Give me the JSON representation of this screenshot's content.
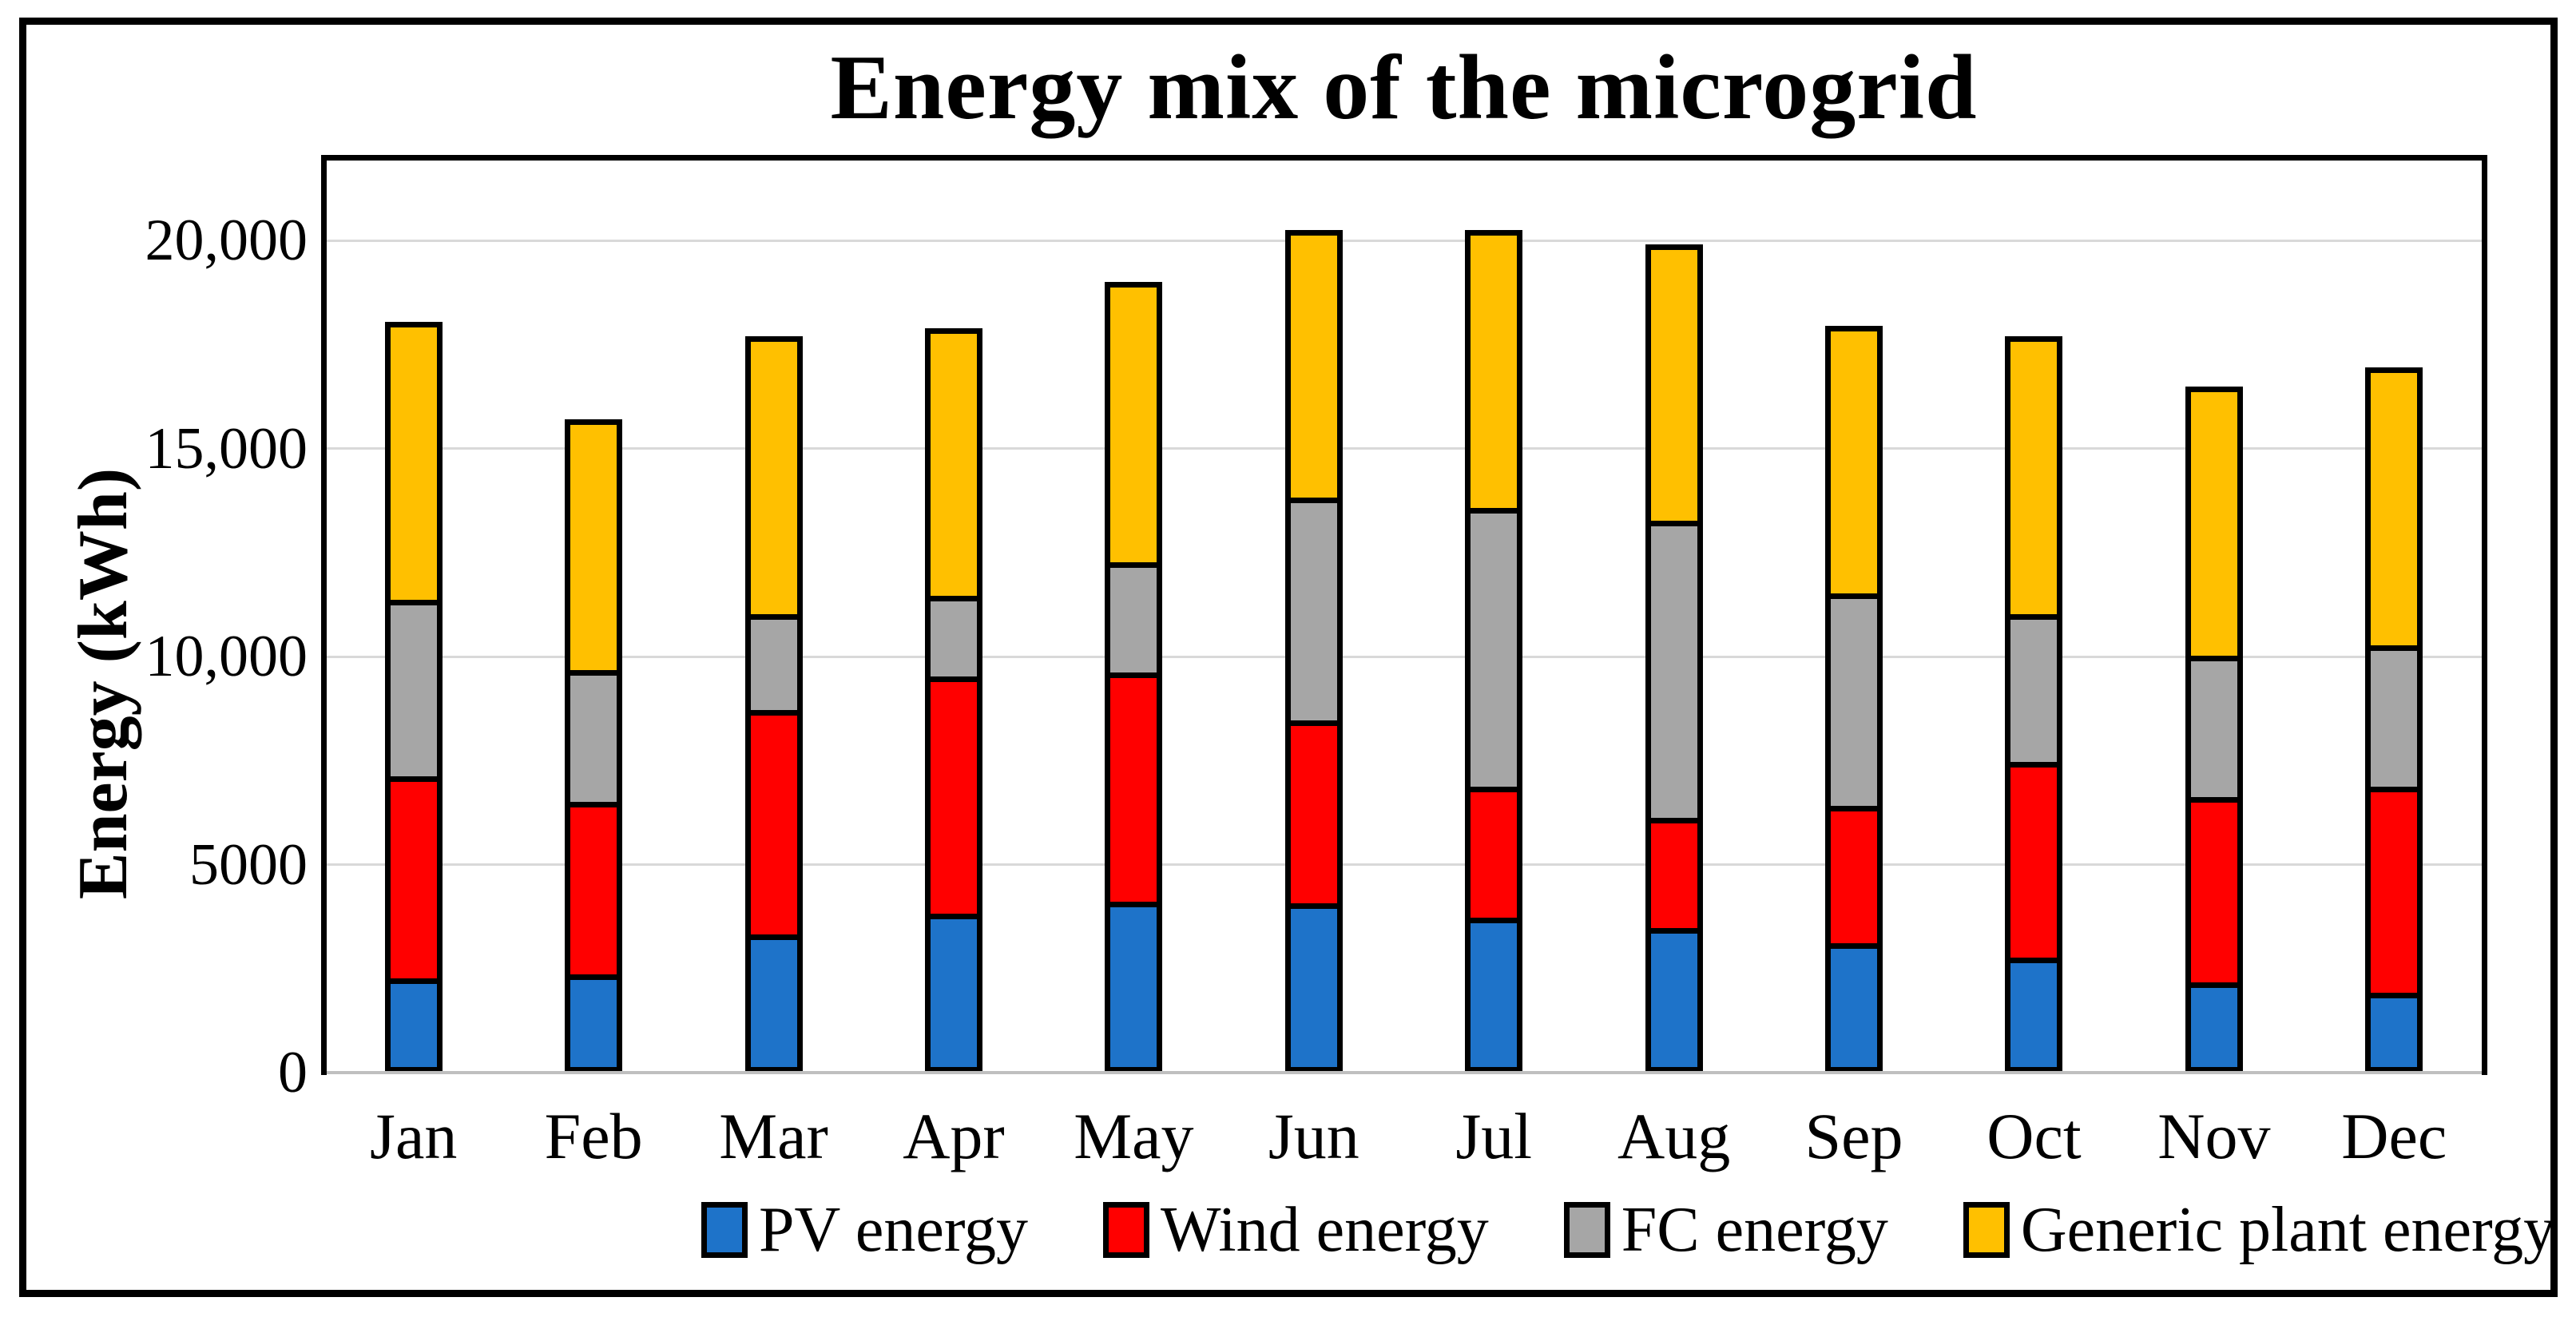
{
  "figure": {
    "title": "Energy mix of the microgrid",
    "y_axis_title": "Energy (kWh)"
  },
  "chart_data": {
    "type": "bar",
    "stacked": true,
    "title": "Energy mix of the microgrid",
    "xlabel": "",
    "ylabel": "Energy (kWh)",
    "ylim": [
      0,
      22000
    ],
    "grid": "horizontal",
    "gridline_values": [
      5000,
      10000,
      15000,
      20000
    ],
    "ytick_values": [
      0,
      5000,
      10000,
      15000,
      20000
    ],
    "ytick_labels": [
      "0",
      "5000",
      "10,000",
      "15,000",
      "20,000"
    ],
    "legend_position": "bottom",
    "categories": [
      "Jan",
      "Feb",
      "Mar",
      "Apr",
      "May",
      "Jun",
      "Jul",
      "Aug",
      "Sep",
      "Oct",
      "Nov",
      "Dec"
    ],
    "series": [
      {
        "name": "PV energy",
        "color": "#1E73C9",
        "values": [
          2200,
          2300,
          3250,
          3750,
          4050,
          4000,
          3650,
          3400,
          3050,
          2700,
          2100,
          1850
        ]
      },
      {
        "name": "Wind energy",
        "color": "#FF0000",
        "values": [
          4850,
          4150,
          5400,
          5700,
          5500,
          4400,
          3150,
          2650,
          3300,
          4700,
          4450,
          4950
        ]
      },
      {
        "name": "FC energy",
        "color": "#A6A6A6",
        "values": [
          4250,
          3150,
          2300,
          1950,
          2650,
          5350,
          6700,
          7150,
          5100,
          3550,
          3400,
          3400
        ]
      },
      {
        "name": "Generic plant energy",
        "color": "#FFC000",
        "values": [
          6750,
          6100,
          6750,
          6500,
          6800,
          6500,
          6750,
          6700,
          6500,
          6750,
          6550,
          6750
        ]
      }
    ],
    "monthly_totals": [
      18050,
      15700,
      17700,
      17900,
      19000,
      20250,
      20250,
      19900,
      17950,
      17700,
      16500,
      16950
    ],
    "styles": {
      "bar_border_color": "#000000",
      "gridline_color": "#D9D9D9",
      "bottom_axis_color": "#BFBFBF",
      "frame_color": "#000000",
      "background": "#FFFFFF"
    }
  }
}
